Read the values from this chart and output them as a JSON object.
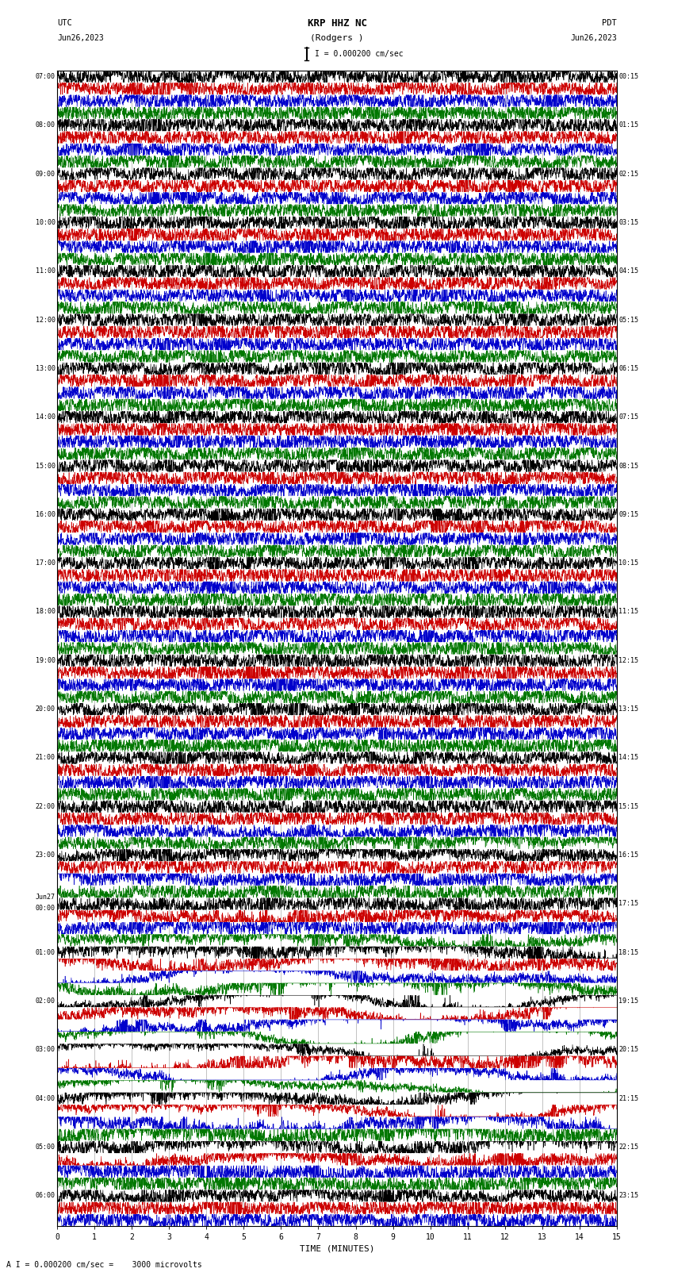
{
  "title_line1": "KRP HHZ NC",
  "title_line2": "(Rodgers )",
  "scale_label": "I = 0.000200 cm/sec",
  "bottom_label": "A I = 0.000200 cm/sec =    3000 microvolts",
  "xlabel": "TIME (MINUTES)",
  "background_color": "#ffffff",
  "trace_colors": [
    "#000000",
    "#cc0000",
    "#0000cc",
    "#007700"
  ],
  "grid_color": "#888888",
  "text_color": "#000000",
  "left_times": [
    "07:00",
    "",
    "",
    "",
    "08:00",
    "",
    "",
    "",
    "09:00",
    "",
    "",
    "",
    "10:00",
    "",
    "",
    "",
    "11:00",
    "",
    "",
    "",
    "12:00",
    "",
    "",
    "",
    "13:00",
    "",
    "",
    "",
    "14:00",
    "",
    "",
    "",
    "15:00",
    "",
    "",
    "",
    "16:00",
    "",
    "",
    "",
    "17:00",
    "",
    "",
    "",
    "18:00",
    "",
    "",
    "",
    "19:00",
    "",
    "",
    "",
    "20:00",
    "",
    "",
    "",
    "21:00",
    "",
    "",
    "",
    "22:00",
    "",
    "",
    "",
    "23:00",
    "",
    "",
    "",
    "Jun27\n00:00",
    "",
    "",
    "",
    "01:00",
    "",
    "",
    "",
    "02:00",
    "",
    "",
    "",
    "03:00",
    "",
    "",
    "",
    "04:00",
    "",
    "",
    "",
    "05:00",
    "",
    "",
    "",
    "06:00",
    "",
    ""
  ],
  "right_times": [
    "00:15",
    "",
    "",
    "",
    "01:15",
    "",
    "",
    "",
    "02:15",
    "",
    "",
    "",
    "03:15",
    "",
    "",
    "",
    "04:15",
    "",
    "",
    "",
    "05:15",
    "",
    "",
    "",
    "06:15",
    "",
    "",
    "",
    "07:15",
    "",
    "",
    "",
    "08:15",
    "",
    "",
    "",
    "09:15",
    "",
    "",
    "",
    "10:15",
    "",
    "",
    "",
    "11:15",
    "",
    "",
    "",
    "12:15",
    "",
    "",
    "",
    "13:15",
    "",
    "",
    "",
    "14:15",
    "",
    "",
    "",
    "15:15",
    "",
    "",
    "",
    "16:15",
    "",
    "",
    "",
    "17:15",
    "",
    "",
    "",
    "18:15",
    "",
    "",
    "",
    "19:15",
    "",
    "",
    "",
    "20:15",
    "",
    "",
    "",
    "21:15",
    "",
    "",
    "",
    "22:15",
    "",
    "",
    "",
    "23:15",
    "",
    ""
  ],
  "n_rows": 95,
  "n_cols": 15,
  "figwidth": 8.5,
  "figheight": 16.13,
  "noise_seed": 42
}
